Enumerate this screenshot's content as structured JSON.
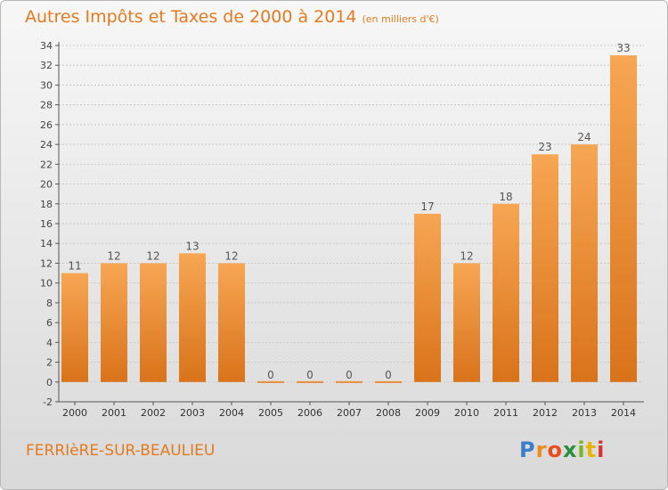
{
  "header": {
    "title": "Autres Impôts et Taxes de 2000 à 2014",
    "subtitle": "(en milliers d'€)"
  },
  "footer": {
    "commune": "FERRIèRE-SUR-BEAULIEU",
    "logo_letters": [
      "P",
      "r",
      "o",
      "x",
      "i",
      "t",
      "i"
    ],
    "logo_colors": [
      "#3a7dc9",
      "#f08a1c",
      "#e84e1b",
      "#2b8f3b",
      "#7ab51d",
      "#e8b400",
      "#d8322d"
    ]
  },
  "colors": {
    "bar_top": "#f7a654",
    "bar_bottom": "#d9731a",
    "title": "#e27b1e",
    "grid": "#c7c7c7"
  },
  "chart_data": {
    "type": "bar",
    "categories": [
      "2000",
      "2001",
      "2002",
      "2003",
      "2004",
      "2005",
      "2006",
      "2007",
      "2008",
      "2009",
      "2010",
      "2011",
      "2012",
      "2013",
      "2014"
    ],
    "values": [
      11,
      12,
      12,
      13,
      12,
      0,
      0,
      0,
      0,
      17,
      12,
      18,
      23,
      24,
      33
    ],
    "data_labels": [
      "11",
      "12",
      "12",
      "13",
      "12",
      "0",
      "0",
      "0",
      "0",
      "17",
      "12",
      "18",
      "23",
      "24",
      "33"
    ],
    "ylim": [
      -2,
      34
    ],
    "yticks": [
      -2,
      0,
      2,
      4,
      6,
      8,
      10,
      12,
      14,
      16,
      18,
      20,
      22,
      24,
      26,
      28,
      30,
      32,
      34
    ],
    "grid": true,
    "title": "Autres Impôts et Taxes de 2000 à 2014",
    "xlabel": "",
    "ylabel": ""
  }
}
